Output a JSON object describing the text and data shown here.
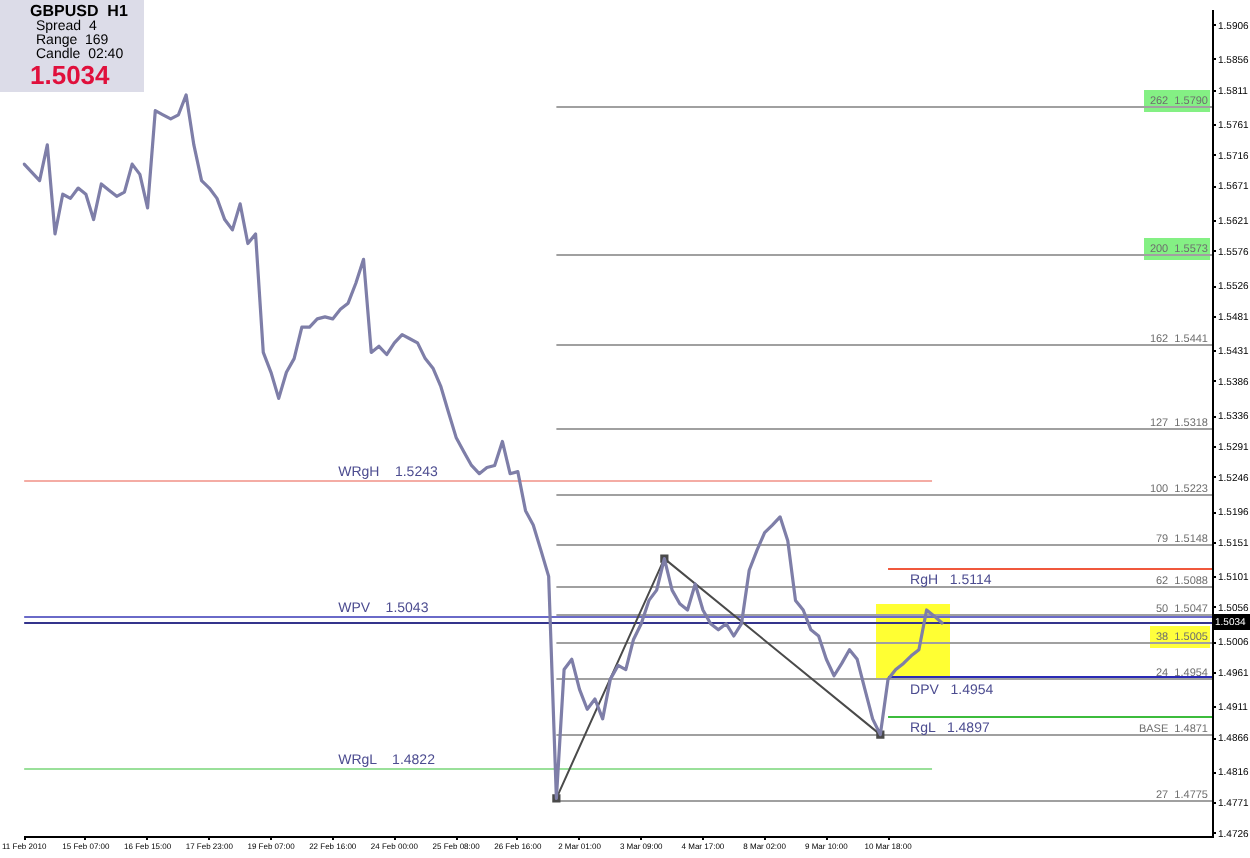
{
  "chart_data": {
    "type": "line",
    "title": "GBPUSD  H1",
    "annotations": [
      "Spread  4",
      "Range  169",
      "Candle  02:40",
      "1.5034"
    ],
    "categories": [
      "11 Feb 2010",
      null,
      null,
      null,
      null,
      null,
      null,
      null,
      "15 Feb 07:00",
      null,
      null,
      null,
      null,
      null,
      null,
      null,
      "16 Feb 15:00",
      null,
      null,
      null,
      null,
      null,
      null,
      null,
      "17 Feb 23:00",
      null,
      null,
      null,
      null,
      null,
      null,
      null,
      "19 Feb 07:00",
      null,
      null,
      null,
      null,
      null,
      null,
      null,
      "22 Feb 16:00",
      null,
      null,
      null,
      null,
      null,
      null,
      null,
      "24 Feb 00:00",
      null,
      null,
      null,
      null,
      null,
      null,
      null,
      "25 Feb 08:00",
      null,
      null,
      null,
      null,
      null,
      null,
      null,
      "26 Feb 16:00",
      null,
      null,
      null,
      null,
      null,
      null,
      null,
      "2 Mar 01:00",
      null,
      null,
      null,
      null,
      null,
      null,
      null,
      "3 Mar 09:00",
      null,
      null,
      null,
      null,
      null,
      null,
      null,
      "4 Mar 17:00",
      null,
      null,
      null,
      null,
      null,
      null,
      null,
      "8 Mar 02:00",
      null,
      null,
      null,
      null,
      null,
      null,
      null,
      "9 Mar 10:00",
      null,
      null,
      null,
      null,
      null,
      null,
      null,
      "10 Mar 18:00",
      null,
      null,
      null,
      null,
      null,
      null,
      null,
      null,
      null,
      null,
      null,
      null,
      null,
      null,
      null,
      null,
      null,
      null,
      null,
      null,
      null,
      null,
      null,
      null,
      null,
      null,
      null,
      null,
      null,
      null,
      null,
      null,
      null,
      null,
      null,
      null,
      null,
      null,
      null,
      null,
      null,
      null
    ],
    "series": [
      {
        "color": "#7e7ea8",
        "values": [
          1.5704,
          1.5692,
          1.568,
          1.5732,
          1.5602,
          1.566,
          1.5654,
          1.5669,
          1.566,
          1.5623,
          1.5675,
          1.5666,
          1.5657,
          1.5663,
          1.5704,
          1.5689,
          1.564,
          1.5782,
          1.5776,
          1.577,
          1.5776,
          1.5805,
          1.5732,
          1.568,
          1.5669,
          1.5654,
          1.5623,
          1.5608,
          1.5646,
          1.5588,
          1.5602,
          1.5429,
          1.54,
          1.5362,
          1.54,
          1.542,
          1.5466,
          1.5466,
          1.5478,
          1.5481,
          1.5478,
          1.5492,
          1.5501,
          1.553,
          1.5565,
          1.5429,
          1.5438,
          1.5426,
          1.5443,
          1.5455,
          1.5449,
          1.5443,
          1.542,
          1.5406,
          1.538,
          1.5342,
          1.5305,
          1.5284,
          1.5264,
          1.5252,
          1.5261,
          1.5264,
          1.5299,
          1.5252,
          1.5255,
          1.5198,
          1.5177,
          1.514,
          1.5102,
          1.4778,
          1.4966,
          1.4981,
          1.4937,
          1.4908,
          1.4923,
          1.4894,
          1.4952,
          1.4972,
          1.4966,
          1.501,
          1.5033,
          1.5067,
          1.5082,
          1.5128,
          1.5082,
          1.5062,
          1.5053,
          1.5091,
          1.5053,
          1.5033,
          1.5024,
          1.5033,
          1.5015,
          1.5033,
          1.5111,
          1.514,
          1.5166,
          1.5177,
          1.5189,
          1.5154,
          1.5067,
          1.5053,
          1.5024,
          1.5015,
          1.4981,
          1.4957,
          1.4975,
          1.4995,
          1.4981,
          1.4937,
          1.4894,
          1.4871,
          1.4952,
          1.4966,
          1.4975,
          1.4986,
          1.4995,
          1.5053,
          1.5044,
          1.5034,
          null,
          null,
          null,
          null,
          null,
          null,
          null,
          null,
          null,
          null,
          null,
          null,
          null,
          null,
          null,
          null,
          null,
          null,
          null,
          null,
          null,
          null,
          null,
          null,
          null,
          null,
          null,
          null,
          null,
          null,
          null,
          null,
          null,
          null,
          null
        ]
      },
      {
        "type": "line",
        "color": "#4a4a4a",
        "marker": "square",
        "values": [
          null,
          null,
          null,
          null,
          null,
          null,
          null,
          null,
          null,
          null,
          null,
          null,
          null,
          null,
          null,
          null,
          null,
          null,
          null,
          null,
          null,
          null,
          null,
          null,
          null,
          null,
          null,
          null,
          null,
          null,
          null,
          null,
          null,
          null,
          null,
          null,
          null,
          null,
          null,
          null,
          null,
          null,
          null,
          null,
          null,
          null,
          null,
          null,
          null,
          null,
          null,
          null,
          null,
          null,
          null,
          null,
          null,
          null,
          null,
          null,
          null,
          null,
          null,
          null,
          null,
          null,
          null,
          null,
          null,
          1.4778,
          null,
          null,
          null,
          null,
          null,
          null,
          null,
          null,
          null,
          null,
          null,
          null,
          null,
          1.5128,
          null,
          null,
          null,
          null,
          null,
          null,
          null,
          null,
          null,
          null,
          null,
          null,
          null,
          null,
          null,
          null,
          null,
          null,
          null,
          null,
          null,
          null,
          null,
          null,
          null,
          null,
          null,
          1.4871,
          null,
          null,
          null,
          null,
          null,
          null,
          null,
          null,
          null,
          null,
          null,
          null,
          null,
          null,
          null,
          null,
          null,
          null,
          null,
          null,
          null,
          null,
          null,
          null,
          null,
          null,
          null,
          null,
          null,
          null,
          null,
          null,
          null,
          null,
          null,
          null,
          null,
          null,
          null,
          null,
          null,
          null,
          null
        ]
      }
    ],
    "ylim": [
      1.4723,
      1.5929
    ],
    "yticks": [
      1.4726,
      1.4771,
      1.4816,
      1.4866,
      1.4911,
      1.4961,
      1.5006,
      1.5056,
      1.5101,
      1.5151,
      1.5196,
      1.5246,
      1.5291,
      1.5336,
      1.5386,
      1.5431,
      1.5481,
      1.5526,
      1.5576,
      1.5621,
      1.5671,
      1.5716,
      1.5761,
      1.5811,
      1.5856,
      1.5906
    ],
    "ref_lines": [
      {
        "axis": "y",
        "value": 1.5243,
        "label": "WRgH    1.5243",
        "color": "#f4aca4"
      },
      {
        "axis": "y",
        "value": 1.5043,
        "label": "WPV    1.5043",
        "color": "#6a6ac8"
      },
      {
        "axis": "y",
        "value": 1.4822,
        "label": "WRgL    1.4822",
        "color": "#9ae09a"
      },
      {
        "axis": "y",
        "value": 1.5114,
        "label": "RgH   1.5114",
        "color": "#f0583c"
      },
      {
        "axis": "y",
        "value": 1.4954,
        "label": "DPV   1.4954",
        "color": "#2a2ab4"
      },
      {
        "axis": "y",
        "value": 1.4897,
        "label": "RgL   1.4897",
        "color": "#3cbc3c"
      },
      {
        "axis": "y",
        "value": 1.5034,
        "label": "1.5034",
        "color": "#34348c"
      },
      {
        "axis": "y",
        "value": 1.579,
        "label": "262  1.5790",
        "color": "#a0a0a0"
      },
      {
        "axis": "y",
        "value": 1.5573,
        "label": "200  1.5573",
        "color": "#a0a0a0"
      },
      {
        "axis": "y",
        "value": 1.5441,
        "label": "162  1.5441",
        "color": "#a0a0a0"
      },
      {
        "axis": "y",
        "value": 1.5318,
        "label": "127  1.5318",
        "color": "#a0a0a0"
      },
      {
        "axis": "y",
        "value": 1.5223,
        "label": "100  1.5223",
        "color": "#a0a0a0"
      },
      {
        "axis": "y",
        "value": 1.5148,
        "label": "79  1.5148",
        "color": "#a0a0a0"
      },
      {
        "axis": "y",
        "value": 1.5088,
        "label": "62  1.5088",
        "color": "#a0a0a0"
      },
      {
        "axis": "y",
        "value": 1.5047,
        "label": "50  1.5047",
        "color": "#a0a0a0"
      },
      {
        "axis": "y",
        "value": 1.5005,
        "label": "38  1.5005",
        "color": "#a0a0a0"
      },
      {
        "axis": "y",
        "value": 1.4954,
        "label": "24  1.4954",
        "color": "#a0a0a0"
      },
      {
        "axis": "y",
        "value": 1.4871,
        "label": "BASE  1.4871",
        "color": "#a0a0a0"
      },
      {
        "axis": "y",
        "value": 1.4775,
        "label": "27  1.4775",
        "color": "#a0a0a0"
      }
    ]
  }
}
